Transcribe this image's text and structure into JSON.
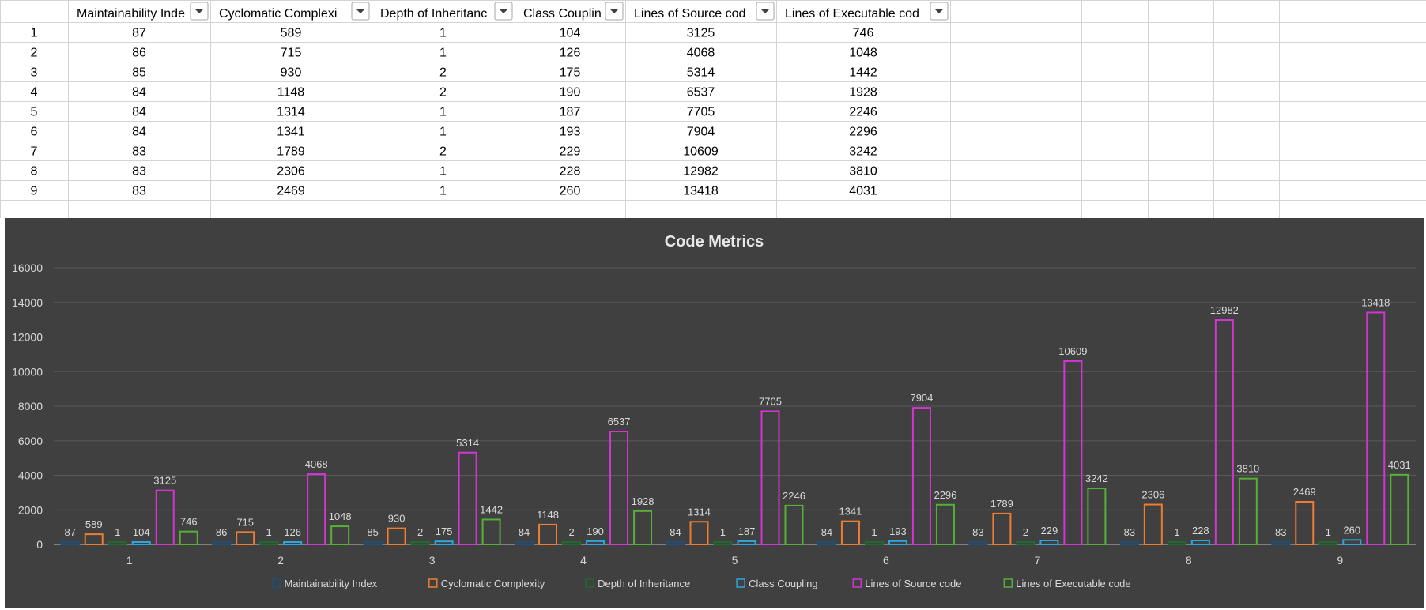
{
  "sheet": {
    "headers": [
      {
        "text": "Maintainability Inde"
      },
      {
        "text": "Cyclomatic Complexi"
      },
      {
        "text": "Depth of Inheritanc"
      },
      {
        "text": "Class Couplin"
      },
      {
        "text": "Lines of Source cod"
      },
      {
        "text": "Lines of Executable cod"
      }
    ],
    "rows": [
      [
        "1",
        "87",
        "589",
        "1",
        "104",
        "3125",
        "746"
      ],
      [
        "2",
        "86",
        "715",
        "1",
        "126",
        "4068",
        "1048"
      ],
      [
        "3",
        "85",
        "930",
        "2",
        "175",
        "5314",
        "1442"
      ],
      [
        "4",
        "84",
        "1148",
        "2",
        "190",
        "6537",
        "1928"
      ],
      [
        "5",
        "84",
        "1314",
        "1",
        "187",
        "7705",
        "2246"
      ],
      [
        "6",
        "84",
        "1341",
        "1",
        "193",
        "7904",
        "2296"
      ],
      [
        "7",
        "83",
        "1789",
        "2",
        "229",
        "10609",
        "3242"
      ],
      [
        "8",
        "83",
        "2306",
        "1",
        "228",
        "12982",
        "3810"
      ],
      [
        "9",
        "83",
        "2469",
        "1",
        "260",
        "13418",
        "4031"
      ]
    ]
  },
  "chart_data": {
    "type": "bar",
    "title": "Code Metrics",
    "categories": [
      "1",
      "2",
      "3",
      "4",
      "5",
      "6",
      "7",
      "8",
      "9"
    ],
    "ylim": [
      0,
      16000
    ],
    "yticks": [
      0,
      2000,
      4000,
      6000,
      8000,
      10000,
      12000,
      14000,
      16000
    ],
    "grid": true,
    "legend_position": "bottom",
    "series": [
      {
        "name": "Maintainability Index",
        "color": "#1f4e79",
        "values": [
          87,
          86,
          85,
          84,
          84,
          84,
          83,
          83,
          83
        ]
      },
      {
        "name": "Cyclomatic Complexity",
        "color": "#ed7d31",
        "values": [
          589,
          715,
          930,
          1148,
          1314,
          1341,
          1789,
          2306,
          2469
        ]
      },
      {
        "name": "Depth of Inheritance",
        "color": "#1e6b2e",
        "values": [
          1,
          1,
          2,
          2,
          1,
          1,
          2,
          1,
          1
        ]
      },
      {
        "name": "Class Coupling",
        "color": "#2aa7e0",
        "values": [
          104,
          126,
          175,
          190,
          187,
          193,
          229,
          228,
          260
        ]
      },
      {
        "name": "Lines of Source code",
        "color": "#d235d2",
        "values": [
          3125,
          4068,
          5314,
          6537,
          7705,
          7904,
          10609,
          12982,
          13418
        ]
      },
      {
        "name": "Lines of Executable code",
        "color": "#55b035",
        "values": [
          746,
          1048,
          1442,
          1928,
          2246,
          2296,
          3242,
          3810,
          4031
        ]
      }
    ]
  }
}
